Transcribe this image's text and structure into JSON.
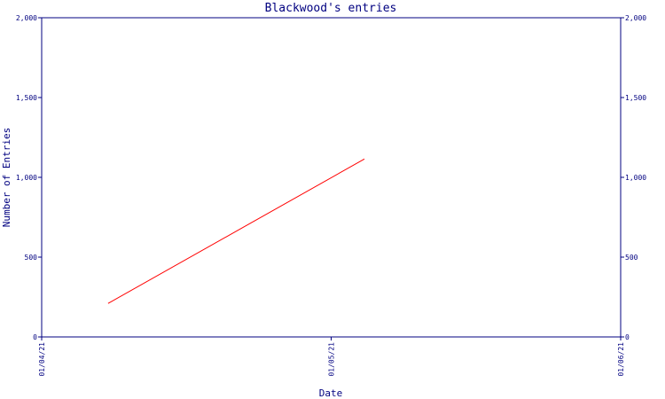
{
  "chart_data": {
    "type": "line",
    "title": "Blackwood's entries",
    "xlabel": "Date",
    "ylabel": "Number of Entries",
    "x_ticks": [
      "01/04/21",
      "01/05/21",
      "01/06/21"
    ],
    "y_ticks": [
      "0",
      "500",
      "1,000",
      "1,500",
      "2,000"
    ],
    "y_tick_values": [
      0,
      500,
      1000,
      1500,
      2000
    ],
    "ylim": [
      0,
      2000
    ],
    "xlim": [
      "2021-04-01",
      "2021-06-01"
    ],
    "grid": false,
    "right_axis": true,
    "series": [
      {
        "color": "#ff0000",
        "points": [
          {
            "x": "2021-04-08",
            "y": 210
          },
          {
            "x": "2021-05-05",
            "y": 1115
          }
        ]
      }
    ]
  },
  "colors": {
    "axis": "#000080",
    "text": "#000080",
    "series": "#ff0000",
    "background": "#ffffff"
  }
}
